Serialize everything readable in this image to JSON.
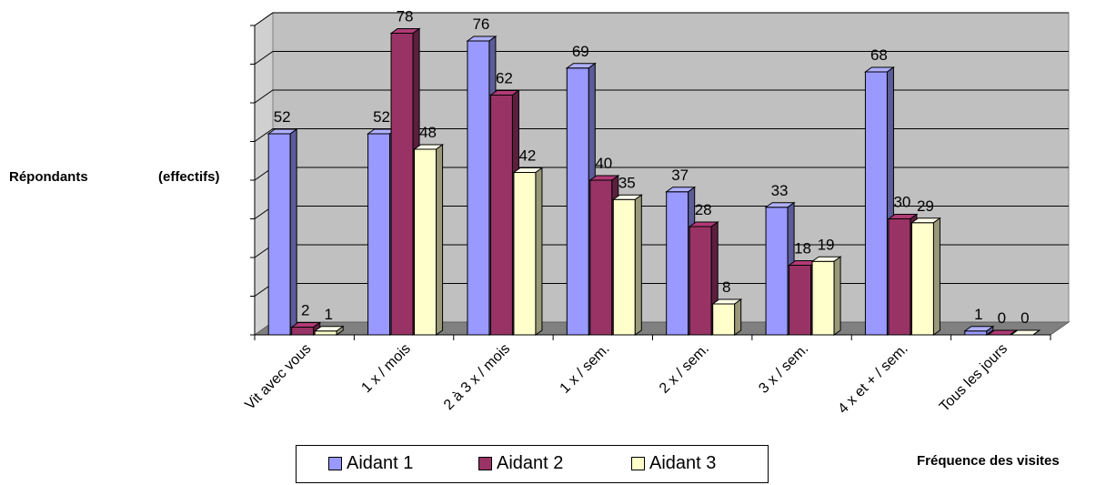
{
  "chart_data": {
    "type": "bar",
    "title": "",
    "ylabel_part1": "Répondants",
    "ylabel_part2": "(effectifs)",
    "xlabel": "Fréquence des visites",
    "ylim": [
      0,
      80
    ],
    "grid": true,
    "legend_placement": "bottom",
    "categories": [
      "Vit avec vous",
      "1 x / mois",
      "2 à 3 x / mois",
      "1 x / sem.",
      "2 x / sem.",
      "3 x / sem.",
      "4 x et + / sem.",
      "Tous les jours"
    ],
    "series": [
      {
        "name": "Aidant 1",
        "color": "#9999ff",
        "values": [
          52,
          52,
          76,
          69,
          37,
          33,
          68,
          1
        ]
      },
      {
        "name": "Aidant 2",
        "color": "#993366",
        "values": [
          2,
          78,
          62,
          40,
          28,
          18,
          30,
          0
        ]
      },
      {
        "name": "Aidant 3",
        "color": "#ffffcc",
        "values": [
          1,
          48,
          42,
          35,
          8,
          19,
          29,
          0
        ]
      }
    ]
  }
}
